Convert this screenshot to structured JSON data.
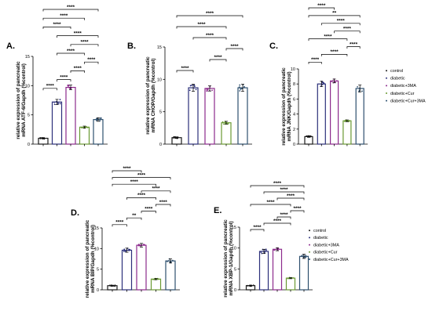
{
  "figure": {
    "colors": {
      "control": "#1a1a1a",
      "diabetic": "#2b2f7a",
      "diabetic+3MA": "#8c2a8c",
      "diabetic+Cur": "#6a9a32",
      "diabetic+Cur+3MA": "#2d4f6e",
      "bar_fill": "#ffffff",
      "axis": "#000000"
    }
  },
  "chart_data": [
    {
      "panel": "A.",
      "type": "bar",
      "ylabel_lines": [
        "relative expression of pancreatic",
        "mRNA ATF-6/Gapdh (%control)"
      ],
      "ylim": [
        0,
        15
      ],
      "yticks": [
        0,
        5,
        10,
        15
      ],
      "categories": [
        "",
        "",
        "",
        "",
        ""
      ],
      "values": [
        1.0,
        7.2,
        9.7,
        2.9,
        4.2
      ],
      "errors": [
        0.12,
        0.45,
        0.4,
        0.18,
        0.3
      ],
      "series_keys": [
        "control",
        "diabetic",
        "diabetic+3MA",
        "diabetic+Cur",
        "diabetic+Cur+3MA"
      ],
      "comparisons": [
        {
          "a": 0,
          "b": 1,
          "label": "****"
        },
        {
          "a": 1,
          "b": 2,
          "label": "****"
        },
        {
          "a": 2,
          "b": 3,
          "label": "****"
        },
        {
          "a": 3,
          "b": 4,
          "label": "****"
        },
        {
          "a": 1,
          "b": 3,
          "label": "****"
        },
        {
          "a": 2,
          "b": 4,
          "label": "****"
        },
        {
          "a": 1,
          "b": 4,
          "label": "****"
        },
        {
          "a": 0,
          "b": 2,
          "label": "****"
        },
        {
          "a": 0,
          "b": 3,
          "label": "****"
        },
        {
          "a": 0,
          "b": 4,
          "label": "****"
        }
      ],
      "legend": false
    },
    {
      "panel": "B.",
      "type": "bar",
      "ylabel_lines": [
        "relative expression of pancreatic",
        "mRNA CHOP/Gapdh (%control)"
      ],
      "ylim": [
        0,
        15
      ],
      "yticks": [
        0,
        5,
        10,
        15
      ],
      "categories": [
        "",
        "",
        "",
        "",
        ""
      ],
      "values": [
        1.0,
        8.7,
        8.6,
        3.3,
        8.7
      ],
      "errors": [
        0.12,
        0.55,
        0.4,
        0.22,
        0.55
      ],
      "series_keys": [
        "control",
        "diabetic",
        "diabetic+3MA",
        "diabetic+Cur",
        "diabetic+Cur+3MA"
      ],
      "comparisons": [
        {
          "a": 0,
          "b": 1,
          "label": "****"
        },
        {
          "a": 2,
          "b": 3,
          "label": "****"
        },
        {
          "a": 3,
          "b": 4,
          "label": "****"
        },
        {
          "a": 1,
          "b": 3,
          "label": "****"
        },
        {
          "a": 0,
          "b": 3,
          "label": "****"
        },
        {
          "a": 0,
          "b": 4,
          "label": "****"
        }
      ],
      "legend": false
    },
    {
      "panel": "C.",
      "type": "bar",
      "ylabel_lines": [
        "relative expression of pancreatic",
        "mRNA JNK/Gapdh (%control)"
      ],
      "ylim": [
        0,
        10
      ],
      "yticks": [
        0,
        2,
        4,
        6,
        8,
        10
      ],
      "categories": [
        "",
        "",
        "",
        "",
        ""
      ],
      "values": [
        1.0,
        8.0,
        8.4,
        3.1,
        7.4
      ],
      "errors": [
        0.1,
        0.35,
        0.25,
        0.12,
        0.45
      ],
      "series_keys": [
        "control",
        "diabetic",
        "diabetic+3MA",
        "diabetic+Cur",
        "diabetic+Cur+3MA"
      ],
      "comparisons": [
        {
          "a": 0,
          "b": 1,
          "label": "****"
        },
        {
          "a": 1,
          "b": 3,
          "label": "****"
        },
        {
          "a": 3,
          "b": 4,
          "label": "****"
        },
        {
          "a": 0,
          "b": 3,
          "label": "****"
        },
        {
          "a": 2,
          "b": 4,
          "label": "****"
        },
        {
          "a": 1,
          "b": 4,
          "label": "****"
        },
        {
          "a": 0,
          "b": 4,
          "label": "**"
        },
        {
          "a": 0,
          "b": 2,
          "label": "****"
        }
      ],
      "legend": true,
      "legend_items": [
        "control",
        "diabetic",
        "diabetic+3MA",
        "diabetic+Cur",
        "diabetic+Cur+3MA"
      ]
    },
    {
      "panel": "D.",
      "type": "bar",
      "ylabel_lines": [
        "relative expression of pancreatic",
        "mRNA BIP/Gapdh (%control)"
      ],
      "ylim": [
        0,
        15
      ],
      "yticks": [
        0,
        5,
        10,
        15
      ],
      "categories": [
        "",
        "",
        "",
        "",
        ""
      ],
      "values": [
        1.0,
        9.6,
        10.8,
        2.6,
        7.0
      ],
      "errors": [
        0.12,
        0.5,
        0.45,
        0.15,
        0.5
      ],
      "series_keys": [
        "control",
        "diabetic",
        "diabetic+3MA",
        "diabetic+Cur",
        "diabetic+Cur+3MA"
      ],
      "comparisons": [
        {
          "a": 0,
          "b": 1,
          "label": "****"
        },
        {
          "a": 1,
          "b": 2,
          "label": "**"
        },
        {
          "a": 2,
          "b": 3,
          "label": "****"
        },
        {
          "a": 3,
          "b": 4,
          "label": "****"
        },
        {
          "a": 1,
          "b": 3,
          "label": "****"
        },
        {
          "a": 2,
          "b": 4,
          "label": "****"
        },
        {
          "a": 0,
          "b": 3,
          "label": "****"
        },
        {
          "a": 0,
          "b": 4,
          "label": "****"
        },
        {
          "a": 0,
          "b": 2,
          "label": "****"
        }
      ],
      "legend": false
    },
    {
      "panel": "E.",
      "type": "bar",
      "ylabel_lines": [
        "relative expression of pancreatic",
        "mRNA XBP-1/Gapdh (%control)"
      ],
      "ylim": [
        0,
        15
      ],
      "yticks": [
        0,
        5,
        10,
        15
      ],
      "categories": [
        "",
        "",
        "",
        "",
        ""
      ],
      "values": [
        1.0,
        9.2,
        9.7,
        2.8,
        8.0
      ],
      "errors": [
        0.12,
        0.5,
        0.35,
        0.15,
        0.5
      ],
      "series_keys": [
        "control",
        "diabetic",
        "diabetic+3MA",
        "diabetic+Cur",
        "diabetic+Cur+3MA"
      ],
      "comparisons": [
        {
          "a": 0,
          "b": 1,
          "label": "****"
        },
        {
          "a": 1,
          "b": 3,
          "label": "****"
        },
        {
          "a": 2,
          "b": 3,
          "label": "****"
        },
        {
          "a": 3,
          "b": 4,
          "label": "****"
        },
        {
          "a": 0,
          "b": 3,
          "label": "****"
        },
        {
          "a": 2,
          "b": 4,
          "label": "****"
        },
        {
          "a": 1,
          "b": 4,
          "label": "****"
        },
        {
          "a": 0,
          "b": 4,
          "label": "****"
        }
      ],
      "legend": true,
      "legend_items": [
        "control",
        "diabetic",
        "diabetic+3MA",
        "diabetic+Cur",
        "diabetic+Cur+3MA"
      ]
    }
  ]
}
